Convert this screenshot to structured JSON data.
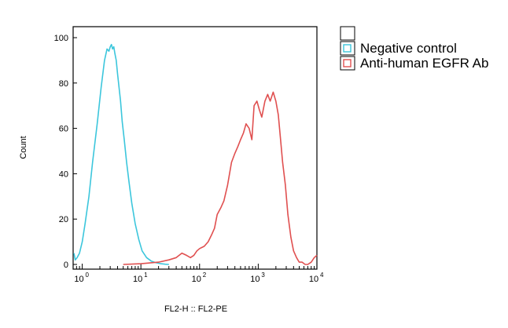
{
  "chart_data": {
    "type": "line",
    "title": "",
    "xlabel": "FL2-H :: FL2-PE",
    "ylabel": "Count",
    "x_scale": "log",
    "xlim": [
      0.7,
      10000
    ],
    "ylim": [
      0,
      100
    ],
    "y_ticks": [
      0,
      20,
      40,
      60,
      80,
      100
    ],
    "x_ticks": [
      {
        "value": 1,
        "base": "10",
        "exp": "0"
      },
      {
        "value": 10,
        "base": "10",
        "exp": "1"
      },
      {
        "value": 100,
        "base": "10",
        "exp": "2"
      },
      {
        "value": 1000,
        "base": "10",
        "exp": "3"
      },
      {
        "value": 10000,
        "base": "10",
        "exp": "4"
      }
    ],
    "grid": false,
    "legend_position": "outside-right",
    "legend_entries": [
      "",
      "Negative control",
      "Anti-human EGFR Ab"
    ],
    "series": [
      {
        "name": "Negative control",
        "color": "#3cc6dc",
        "x": [
          0.7,
          0.76,
          0.82,
          0.9,
          1.0,
          1.12,
          1.3,
          1.5,
          1.8,
          2.1,
          2.4,
          2.65,
          2.85,
          3.0,
          3.15,
          3.3,
          3.45,
          3.6,
          3.8,
          4.0,
          4.25,
          4.5,
          4.8,
          5.2,
          5.7,
          6.3,
          7.0,
          8.0,
          9.2,
          10.5,
          12.5,
          15.0,
          18.0,
          22.0,
          26.0,
          30.0
        ],
        "y": [
          5,
          2,
          3,
          5,
          10,
          18,
          30,
          45,
          62,
          78,
          90,
          95,
          94,
          96,
          97,
          95,
          96,
          93,
          90,
          84,
          78,
          72,
          63,
          55,
          45,
          36,
          27,
          18,
          11,
          6,
          3,
          1.5,
          0.8,
          0.3,
          0.1,
          0
        ]
      },
      {
        "name": "Anti-human EGFR Ab",
        "color": "#e05050",
        "x": [
          5,
          10,
          20,
          30,
          40,
          50,
          60,
          70,
          80,
          90,
          100,
          120,
          140,
          160,
          180,
          200,
          230,
          260,
          300,
          350,
          400,
          450,
          500,
          560,
          620,
          700,
          780,
          850,
          950,
          1050,
          1150,
          1300,
          1450,
          1600,
          1800,
          2000,
          2200,
          2400,
          2600,
          2900,
          3200,
          3600,
          4000,
          4500,
          5000,
          5600,
          6300,
          7000,
          8000,
          9000,
          10000
        ],
        "y": [
          0,
          0.3,
          1,
          2,
          3,
          5,
          4,
          3,
          4,
          6,
          7,
          8,
          10,
          13,
          16,
          22,
          25,
          28,
          35,
          45,
          49,
          52,
          55,
          58,
          62,
          60,
          55,
          70,
          72,
          68,
          65,
          72,
          75,
          72,
          76,
          72,
          66,
          55,
          45,
          35,
          22,
          12,
          6,
          3,
          1,
          1,
          0,
          0,
          1,
          3,
          4
        ]
      }
    ]
  }
}
